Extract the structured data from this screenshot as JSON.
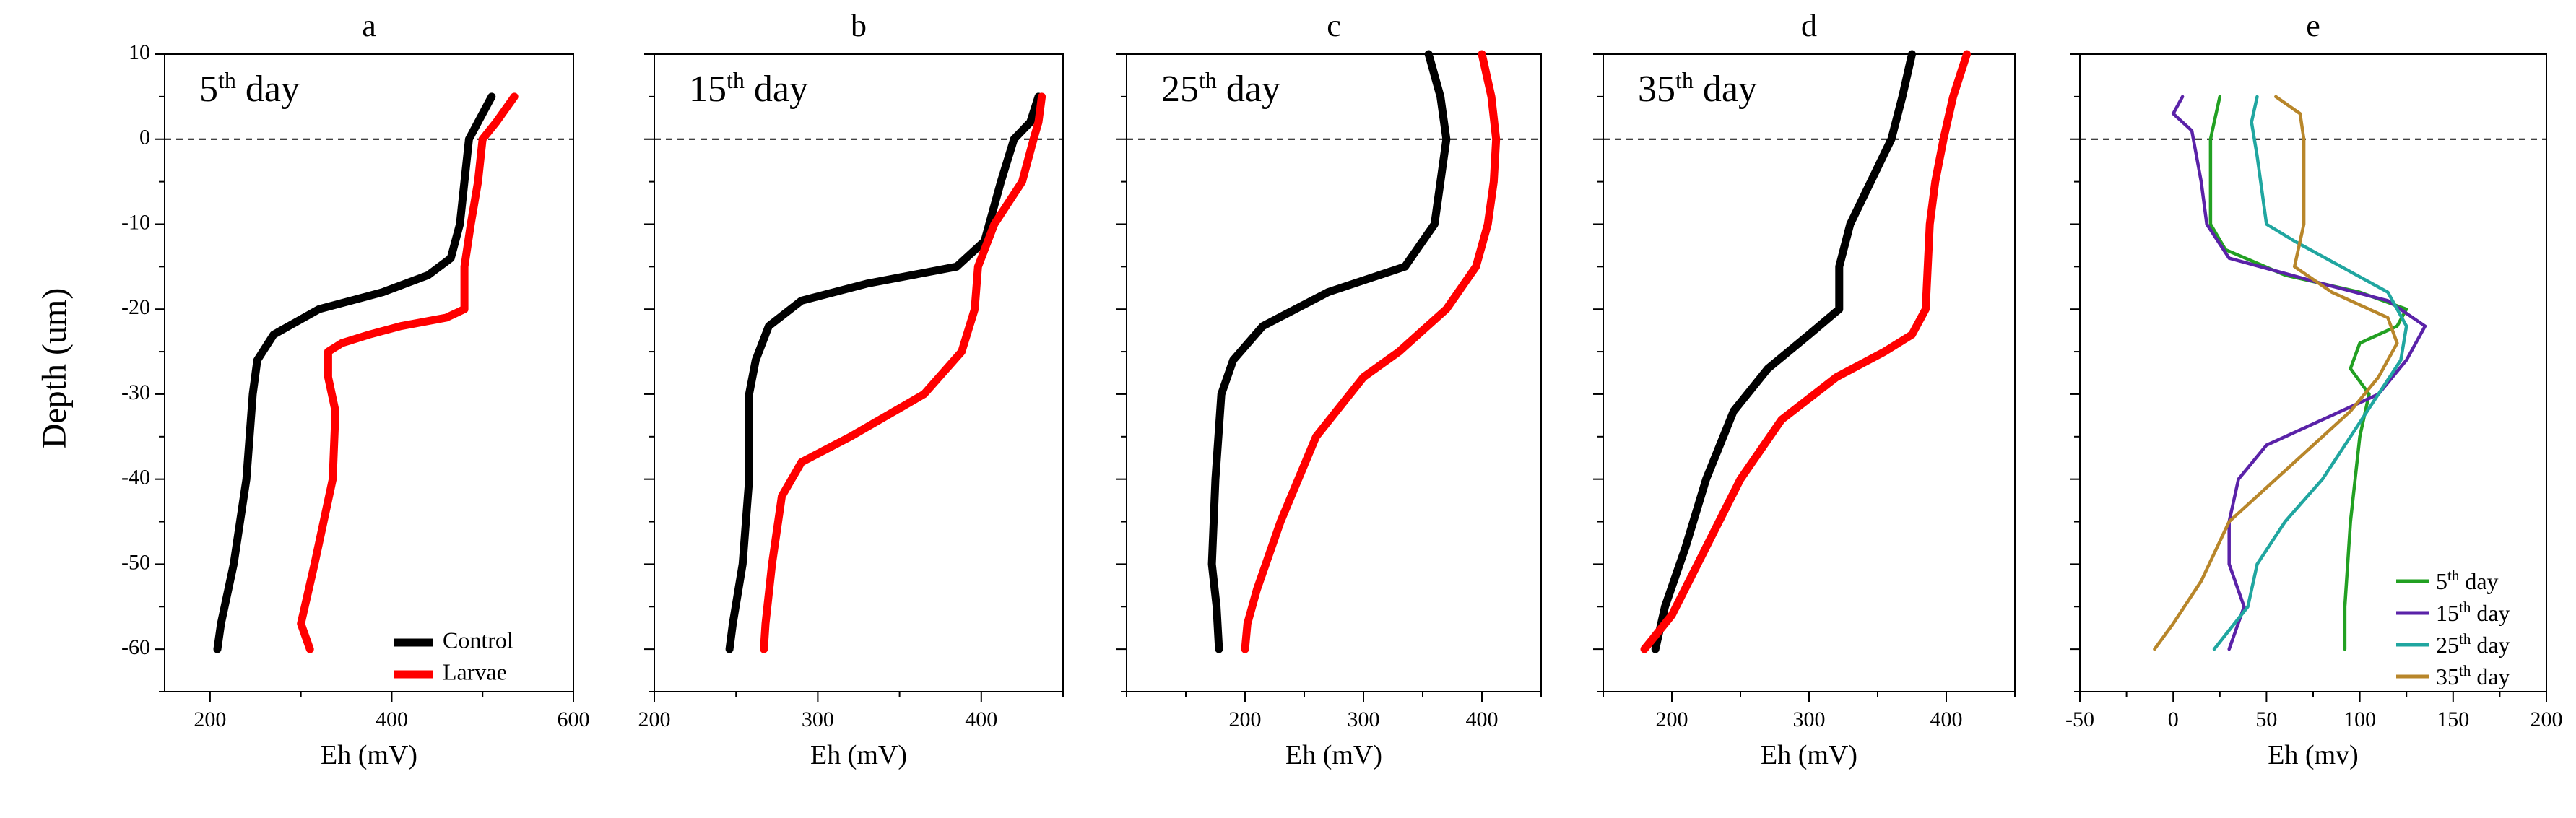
{
  "figure": {
    "ylabel": "Depth (um)",
    "y_ticks": [
      "10",
      "0",
      "-10",
      "-20",
      "-30",
      "-40",
      "-50",
      "-60"
    ]
  },
  "chart_data": [
    {
      "type": "line",
      "panel_title": "a",
      "day_label": {
        "prefix": "5",
        "sup": "th",
        "suffix": " day"
      },
      "xlabel": "Eh (mV)",
      "xlim": [
        150,
        600
      ],
      "ylim": [
        -65,
        10
      ],
      "x_ticks": [
        "200",
        "400",
        "600"
      ],
      "reference_line_y": 0,
      "legend": {
        "position": "bottom-right",
        "entries": [
          "Control",
          "Larvae"
        ]
      },
      "series": [
        {
          "name": "Control",
          "color": "#000000",
          "points": [
            [
              510,
              5
            ],
            [
              495,
              2
            ],
            [
              485,
              0
            ],
            [
              480,
              -5
            ],
            [
              475,
              -10
            ],
            [
              465,
              -14
            ],
            [
              440,
              -16
            ],
            [
              390,
              -18
            ],
            [
              320,
              -20
            ],
            [
              270,
              -23
            ],
            [
              252,
              -26
            ],
            [
              247,
              -30
            ],
            [
              240,
              -40
            ],
            [
              226,
              -50
            ],
            [
              212,
              -57
            ],
            [
              208,
              -60
            ]
          ]
        },
        {
          "name": "Larvae",
          "color": "#ff0000",
          "points": [
            [
              535,
              5
            ],
            [
              515,
              2
            ],
            [
              500,
              0
            ],
            [
              495,
              -5
            ],
            [
              487,
              -10
            ],
            [
              480,
              -15
            ],
            [
              480,
              -20
            ],
            [
              460,
              -21
            ],
            [
              410,
              -22
            ],
            [
              375,
              -23
            ],
            [
              345,
              -24
            ],
            [
              330,
              -25
            ],
            [
              330,
              -28
            ],
            [
              338,
              -32
            ],
            [
              335,
              -40
            ],
            [
              315,
              -50
            ],
            [
              300,
              -57
            ],
            [
              310,
              -60
            ]
          ]
        }
      ]
    },
    {
      "type": "line",
      "panel_title": "b",
      "day_label": {
        "prefix": "15",
        "sup": "th",
        "suffix": " day"
      },
      "xlabel": "Eh (mV)",
      "xlim": [
        200,
        450
      ],
      "ylim": [
        -65,
        10
      ],
      "x_ticks": [
        "200",
        "300",
        "400"
      ],
      "reference_line_y": 0,
      "series": [
        {
          "name": "Control",
          "color": "#000000",
          "points": [
            [
              435,
              5
            ],
            [
              430,
              2
            ],
            [
              420,
              0
            ],
            [
              412,
              -5
            ],
            [
              402,
              -12
            ],
            [
              385,
              -15
            ],
            [
              330,
              -17
            ],
            [
              290,
              -19
            ],
            [
              270,
              -22
            ],
            [
              262,
              -26
            ],
            [
              258,
              -30
            ],
            [
              258,
              -40
            ],
            [
              254,
              -50
            ],
            [
              248,
              -57
            ],
            [
              246,
              -60
            ]
          ]
        },
        {
          "name": "Larvae",
          "color": "#ff0000",
          "points": [
            [
              437,
              5
            ],
            [
              435,
              2
            ],
            [
              432,
              0
            ],
            [
              425,
              -5
            ],
            [
              408,
              -10
            ],
            [
              398,
              -15
            ],
            [
              396,
              -20
            ],
            [
              388,
              -25
            ],
            [
              365,
              -30
            ],
            [
              320,
              -35
            ],
            [
              290,
              -38
            ],
            [
              278,
              -42
            ],
            [
              272,
              -50
            ],
            [
              268,
              -57
            ],
            [
              267,
              -60
            ]
          ]
        }
      ]
    },
    {
      "type": "line",
      "panel_title": "c",
      "day_label": {
        "prefix": "25",
        "sup": "th",
        "suffix": " day"
      },
      "xlabel": "Eh (mV)",
      "xlim": [
        100,
        450
      ],
      "ylim": [
        -65,
        10
      ],
      "x_ticks": [
        "200",
        "300",
        "400"
      ],
      "reference_line_y": 0,
      "series": [
        {
          "name": "Control",
          "color": "#000000",
          "points": [
            [
              355,
              10
            ],
            [
              365,
              5
            ],
            [
              370,
              0
            ],
            [
              365,
              -5
            ],
            [
              360,
              -10
            ],
            [
              335,
              -15
            ],
            [
              270,
              -18
            ],
            [
              215,
              -22
            ],
            [
              190,
              -26
            ],
            [
              180,
              -30
            ],
            [
              175,
              -40
            ],
            [
              172,
              -50
            ],
            [
              176,
              -55
            ],
            [
              178,
              -60
            ]
          ]
        },
        {
          "name": "Larvae",
          "color": "#ff0000",
          "points": [
            [
              400,
              10
            ],
            [
              408,
              5
            ],
            [
              412,
              0
            ],
            [
              410,
              -5
            ],
            [
              405,
              -10
            ],
            [
              395,
              -15
            ],
            [
              370,
              -20
            ],
            [
              330,
              -25
            ],
            [
              300,
              -28
            ],
            [
              260,
              -35
            ],
            [
              230,
              -45
            ],
            [
              210,
              -53
            ],
            [
              202,
              -57
            ],
            [
              200,
              -60
            ]
          ]
        }
      ]
    },
    {
      "type": "line",
      "panel_title": "d",
      "day_label": {
        "prefix": "35",
        "sup": "th",
        "suffix": " day"
      },
      "xlabel": "Eh (mV)",
      "xlim": [
        150,
        450
      ],
      "ylim": [
        -65,
        10
      ],
      "x_ticks": [
        "200",
        "300",
        "400"
      ],
      "reference_line_y": 0,
      "series": [
        {
          "name": "Control",
          "color": "#000000",
          "points": [
            [
              375,
              10
            ],
            [
              368,
              5
            ],
            [
              360,
              0
            ],
            [
              345,
              -5
            ],
            [
              330,
              -10
            ],
            [
              322,
              -15
            ],
            [
              322,
              -20
            ],
            [
              300,
              -23
            ],
            [
              270,
              -27
            ],
            [
              245,
              -32
            ],
            [
              225,
              -40
            ],
            [
              210,
              -48
            ],
            [
              195,
              -55
            ],
            [
              188,
              -60
            ]
          ]
        },
        {
          "name": "Larvae",
          "color": "#ff0000",
          "points": [
            [
              415,
              10
            ],
            [
              405,
              5
            ],
            [
              398,
              0
            ],
            [
              392,
              -5
            ],
            [
              388,
              -10
            ],
            [
              385,
              -20
            ],
            [
              375,
              -23
            ],
            [
              355,
              -25
            ],
            [
              320,
              -28
            ],
            [
              280,
              -33
            ],
            [
              250,
              -40
            ],
            [
              225,
              -48
            ],
            [
              200,
              -56
            ],
            [
              180,
              -60
            ]
          ]
        }
      ]
    },
    {
      "type": "line",
      "panel_title": "e",
      "xlabel": "Eh (mv)",
      "xlim": [
        -50,
        200
      ],
      "ylim": [
        -65,
        10
      ],
      "x_ticks": [
        "-50",
        "0",
        "50",
        "100",
        "150",
        "200"
      ],
      "reference_line_y": 0,
      "legend": {
        "position": "bottom-right",
        "entries": [
          {
            "prefix": "5",
            "sup": "th",
            "suffix": " day"
          },
          {
            "prefix": "15",
            "sup": "th",
            "suffix": " day"
          },
          {
            "prefix": "25",
            "sup": "th",
            "suffix": " day"
          },
          {
            "prefix": "35",
            "sup": "th",
            "suffix": " day"
          }
        ]
      },
      "series": [
        {
          "color": "#22a022",
          "points": [
            [
              25,
              5
            ],
            [
              22,
              2
            ],
            [
              20,
              0
            ],
            [
              20,
              -5
            ],
            [
              20,
              -10
            ],
            [
              28,
              -13
            ],
            [
              60,
              -16
            ],
            [
              100,
              -18
            ],
            [
              125,
              -20
            ],
            [
              120,
              -22
            ],
            [
              100,
              -24
            ],
            [
              95,
              -27
            ],
            [
              105,
              -30
            ],
            [
              100,
              -35
            ],
            [
              95,
              -45
            ],
            [
              92,
              -55
            ],
            [
              92,
              -60
            ]
          ]
        },
        {
          "color": "#5a22a8",
          "points": [
            [
              5,
              5
            ],
            [
              0,
              3
            ],
            [
              10,
              1
            ],
            [
              15,
              -5
            ],
            [
              18,
              -10
            ],
            [
              30,
              -14
            ],
            [
              80,
              -17
            ],
            [
              115,
              -19
            ],
            [
              135,
              -22
            ],
            [
              125,
              -26
            ],
            [
              110,
              -30
            ],
            [
              80,
              -33
            ],
            [
              50,
              -36
            ],
            [
              35,
              -40
            ],
            [
              30,
              -45
            ],
            [
              30,
              -50
            ],
            [
              38,
              -55
            ],
            [
              30,
              -60
            ]
          ]
        },
        {
          "color": "#20a6a0",
          "points": [
            [
              45,
              5
            ],
            [
              42,
              2
            ],
            [
              45,
              -2
            ],
            [
              50,
              -10
            ],
            [
              65,
              -12
            ],
            [
              90,
              -15
            ],
            [
              115,
              -18
            ],
            [
              125,
              -22
            ],
            [
              122,
              -26
            ],
            [
              110,
              -30
            ],
            [
              95,
              -35
            ],
            [
              80,
              -40
            ],
            [
              60,
              -45
            ],
            [
              45,
              -50
            ],
            [
              40,
              -55
            ],
            [
              22,
              -60
            ]
          ]
        },
        {
          "color": "#b8862a",
          "points": [
            [
              55,
              5
            ],
            [
              68,
              3
            ],
            [
              70,
              0
            ],
            [
              70,
              -5
            ],
            [
              70,
              -10
            ],
            [
              65,
              -15
            ],
            [
              85,
              -18
            ],
            [
              115,
              -21
            ],
            [
              120,
              -24
            ],
            [
              110,
              -28
            ],
            [
              95,
              -32
            ],
            [
              75,
              -36
            ],
            [
              55,
              -40
            ],
            [
              30,
              -45
            ],
            [
              15,
              -52
            ],
            [
              0,
              -57
            ],
            [
              -10,
              -60
            ]
          ]
        }
      ]
    }
  ]
}
